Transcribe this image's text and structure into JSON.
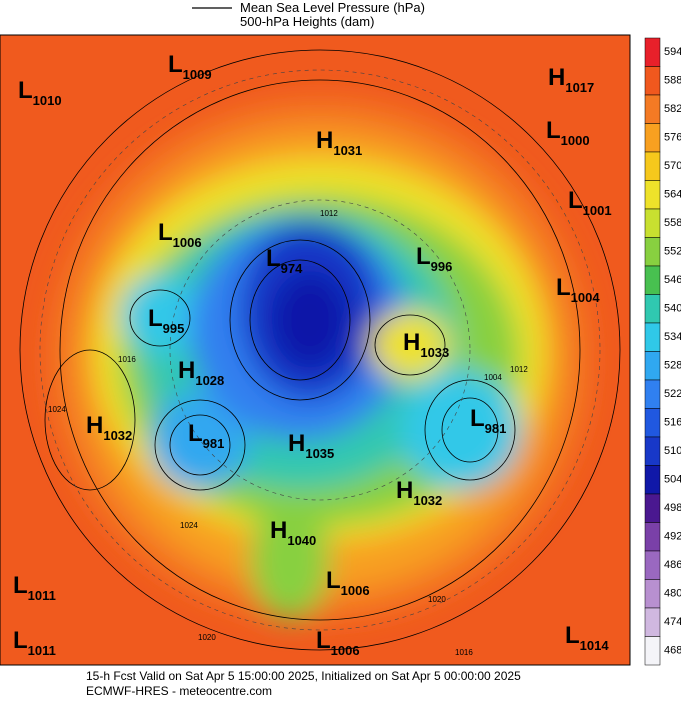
{
  "header": {
    "line1": "Mean Sea Level Pressure (hPa)",
    "line2": "500-hPa Heights (dam)"
  },
  "colorbar": {
    "levels": [
      594,
      588,
      582,
      576,
      570,
      564,
      558,
      552,
      546,
      540,
      534,
      528,
      522,
      516,
      510,
      504,
      498,
      492,
      486,
      480,
      474,
      468
    ],
    "colors": [
      "#e8202a",
      "#f0581e",
      "#f47a24",
      "#f8a020",
      "#f6c81c",
      "#eee22a",
      "#c8e030",
      "#88d040",
      "#48c050",
      "#30c8b0",
      "#30c8e8",
      "#30a8f0",
      "#3080f0",
      "#2058e0",
      "#1838c8",
      "#1018a8",
      "#4a1890",
      "#7a40a8",
      "#9a68c0",
      "#b890d0",
      "#d0b8e0",
      "#f4f4f8"
    ]
  },
  "centers": [
    {
      "kind": "L",
      "value": "1009"
    },
    {
      "kind": "L",
      "value": "1010"
    },
    {
      "kind": "H",
      "value": "1017"
    },
    {
      "kind": "L",
      "value": "1000"
    },
    {
      "kind": "H",
      "value": "1031"
    },
    {
      "kind": "L",
      "value": "1001"
    },
    {
      "kind": "L",
      "value": "1006"
    },
    {
      "kind": "L",
      "value": "974"
    },
    {
      "kind": "L",
      "value": "996"
    },
    {
      "kind": "L",
      "value": "1004"
    },
    {
      "kind": "L",
      "value": "995"
    },
    {
      "kind": "H",
      "value": "1033"
    },
    {
      "kind": "H",
      "value": "1028"
    },
    {
      "kind": "H",
      "value": "1032"
    },
    {
      "kind": "L",
      "value": "981"
    },
    {
      "kind": "H",
      "value": "1035"
    },
    {
      "kind": "L",
      "value": "981"
    },
    {
      "kind": "H",
      "value": "1032"
    },
    {
      "kind": "H",
      "value": "1040"
    },
    {
      "kind": "L",
      "value": "1011"
    },
    {
      "kind": "L",
      "value": "1006"
    },
    {
      "kind": "L",
      "value": "1011"
    },
    {
      "kind": "L",
      "value": "1006"
    },
    {
      "kind": "L",
      "value": "1014"
    }
  ],
  "isobar_labels": [
    "1012",
    "1016",
    "1020",
    "1024",
    "1012",
    "1016",
    "1020",
    "1024",
    "1004"
  ],
  "footer": {
    "line1": "15-h Fcst Valid on Sat Apr  5 15:00:00 2025, Initialized on Sat Apr  5 00:00:00 2025",
    "line2": "ECMWF-HRES - meteocentre.com"
  }
}
